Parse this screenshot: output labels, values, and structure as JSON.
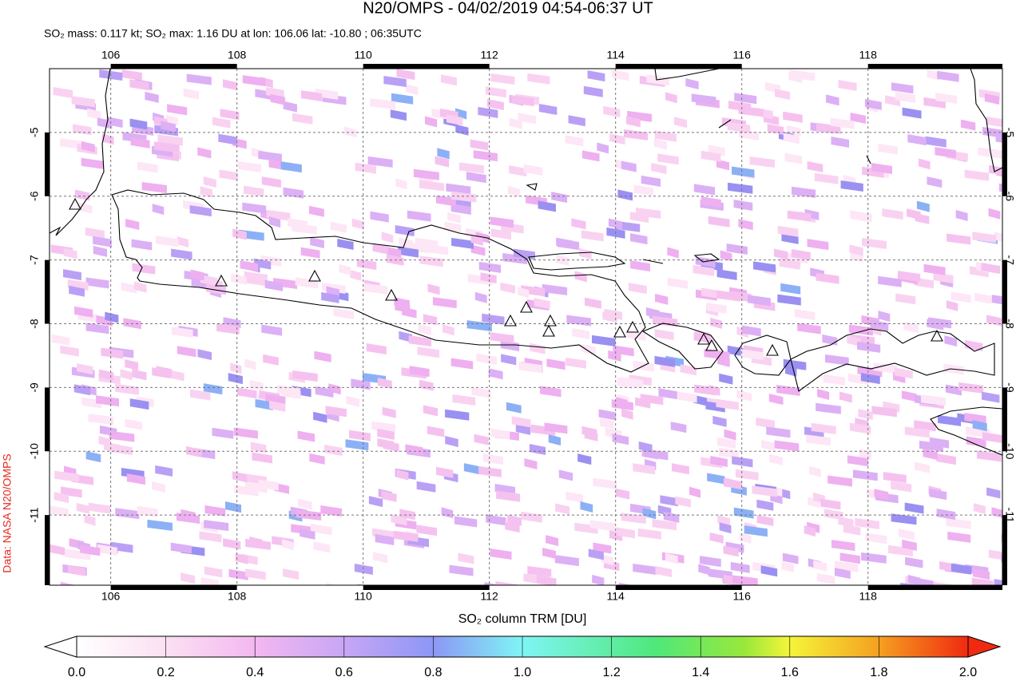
{
  "chart_data": {
    "type": "map",
    "title": "N20/OMPS - 04/02/2019 04:54-06:37 UT",
    "subtitle": "SO₂ mass: 0.117 kt; SO₂ max: 1.16 DU at lon: 106.06 lat: -10.80 ; 06:35UTC",
    "side_label": "Data: NASA N20/OMPS",
    "xlim": [
      105.03,
      120.13
    ],
    "ylim": [
      -12.1,
      -4.0
    ],
    "xticks": [
      106,
      108,
      110,
      112,
      114,
      116,
      118
    ],
    "yticks": [
      -5,
      -6,
      -7,
      -8,
      -9,
      -10,
      -11
    ],
    "grid": true,
    "colorbar": {
      "label": "SO₂ column TRM [DU]",
      "clim": [
        0,
        2
      ],
      "ticks": [
        {
          "value": 0,
          "label": "0.0"
        },
        {
          "value": 0.2,
          "label": "0.2"
        },
        {
          "value": 0.4,
          "label": "0.4"
        },
        {
          "value": 0.6,
          "label": "0.6"
        },
        {
          "value": 0.8,
          "label": "0.8"
        },
        {
          "value": 1,
          "label": "1.0"
        },
        {
          "value": 1.2,
          "label": "1.2"
        },
        {
          "value": 1.4,
          "label": "1.4"
        },
        {
          "value": 1.6,
          "label": "1.6"
        },
        {
          "value": 1.8,
          "label": "1.8"
        },
        {
          "value": 2,
          "label": "2.0"
        }
      ]
    }
  }
}
